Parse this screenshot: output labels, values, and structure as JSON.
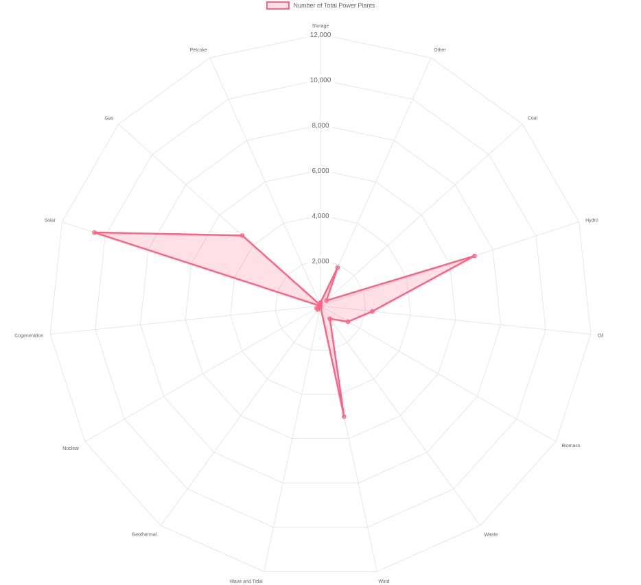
{
  "chart_data": {
    "type": "radar",
    "legend": {
      "label": "Number of Total Power Plants",
      "position": "top",
      "border_color": "#ff6384",
      "fill_color": "rgba(255, 99, 132, 0.2)"
    },
    "labels": [
      "Storage",
      "Other",
      "Coal",
      "Hydro",
      "Oil",
      "Biomass",
      "Waste",
      "Wind",
      "Wave and Tidal",
      "Geothermal",
      "Nuclear",
      "Cogeneration",
      "Solar",
      "Gas",
      "Petcoke"
    ],
    "series": [
      {
        "name": "Number of Total Power Plants",
        "values": [
          150,
          1850,
          350,
          7150,
          2300,
          1400,
          700,
          5000,
          20,
          200,
          200,
          10,
          10500,
          4650,
          50
        ]
      }
    ],
    "r_axis": {
      "min": 0,
      "max": 12000,
      "step": 2000,
      "ticks": [
        "2,000",
        "4,000",
        "6,000",
        "8,000",
        "10,000",
        "12,000"
      ]
    },
    "grid": true,
    "colors": {
      "grid": "#e6e6e6",
      "tick_text": "#666666",
      "series_line": "#ff6384",
      "series_fill": "rgba(255, 99, 132, 0.2)"
    }
  }
}
